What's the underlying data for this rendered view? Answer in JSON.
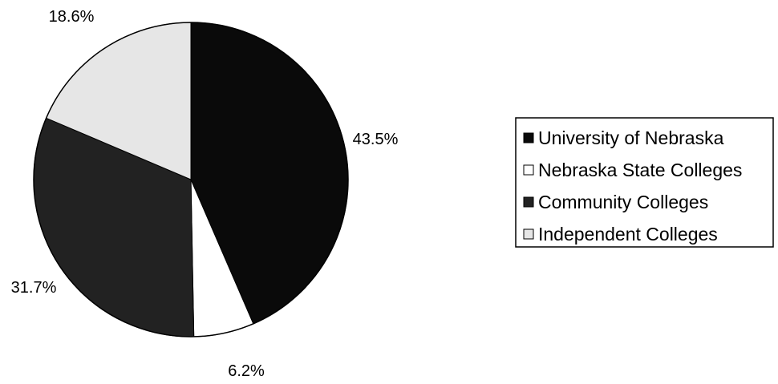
{
  "chart_data": {
    "type": "pie",
    "title": "",
    "categories": [
      "University of Nebraska",
      "Nebraska State Colleges",
      "Community Colleges",
      "Independent Colleges"
    ],
    "values": [
      43.5,
      6.2,
      31.7,
      18.6
    ],
    "data_labels": [
      "43.5%",
      "6.2%",
      "31.7%",
      "18.6%"
    ],
    "colors": [
      "#0a0a0a",
      "#ffffff",
      "#222222",
      "#e6e6e6"
    ],
    "start_angle_deg": 0,
    "direction": "clockwise",
    "legend": {
      "placement": "right",
      "entries": [
        "University of Nebraska",
        "Nebraska State Colleges",
        "Community Colleges",
        "Independent Colleges"
      ]
    }
  }
}
